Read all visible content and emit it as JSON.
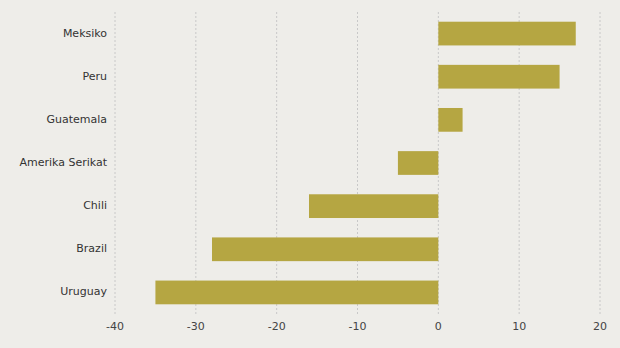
{
  "chart_data": {
    "type": "bar",
    "orientation": "horizontal",
    "categories": [
      "Uruguay",
      "Brazil",
      "Chili",
      "Amerika Serikat",
      "Guatemala",
      "Peru",
      "Meksiko"
    ],
    "values": [
      -35,
      -28,
      -16,
      -5,
      3,
      15,
      17
    ],
    "color": "#b5a642",
    "xlim": [
      -40,
      20
    ],
    "xticks": [
      -40,
      -30,
      -20,
      -10,
      0,
      10,
      20
    ],
    "grid": true
  }
}
